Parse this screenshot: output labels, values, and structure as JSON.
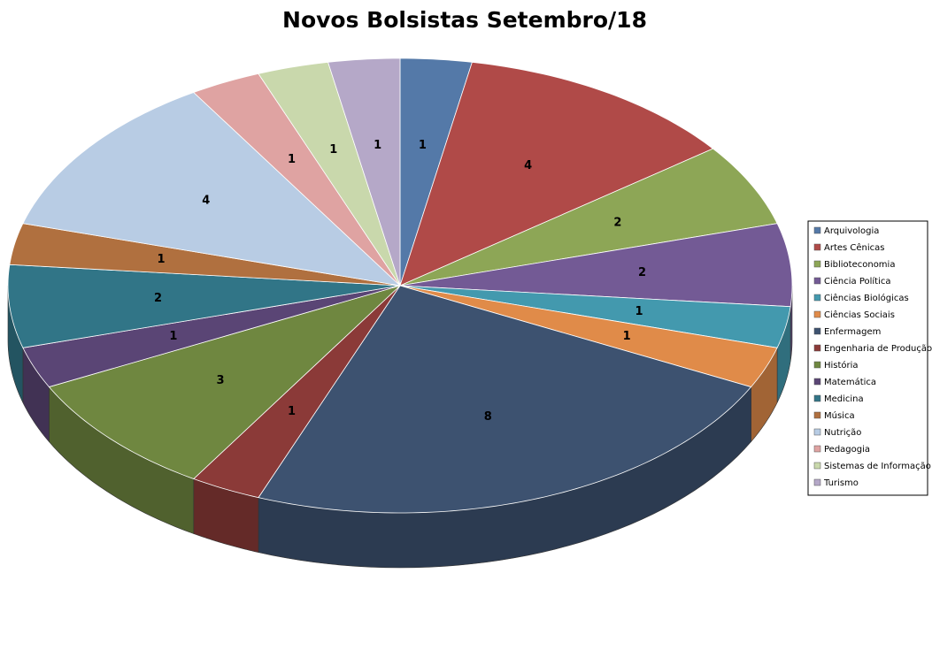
{
  "chart_data": {
    "type": "pie",
    "title": "Novos Bolsistas Setembro/18",
    "categories": [
      "Arquivologia",
      "Artes Cênicas",
      "Biblioteconomia",
      "Ciência Política",
      "Ciências Biológicas",
      "Ciências Sociais",
      "Enfermagem",
      "Engenharia de Produção",
      "História",
      "Matemática",
      "Medicina",
      "Música",
      "Nutrição",
      "Pedagogia",
      "Sistemas de Informação",
      "Turismo"
    ],
    "values": [
      1,
      4,
      2,
      2,
      1,
      1,
      8,
      1,
      3,
      1,
      2,
      1,
      4,
      1,
      1,
      1
    ],
    "colors": [
      "#5479A8",
      "#B04A48",
      "#8DA656",
      "#735A95",
      "#4399AE",
      "#E08B49",
      "#3D5270",
      "#8B3A38",
      "#6F8740",
      "#5A4575",
      "#317587",
      "#B0703F",
      "#B8CCE4",
      "#DFA3A2",
      "#C9D8AC",
      "#B5A8C8"
    ],
    "legend": "right"
  }
}
